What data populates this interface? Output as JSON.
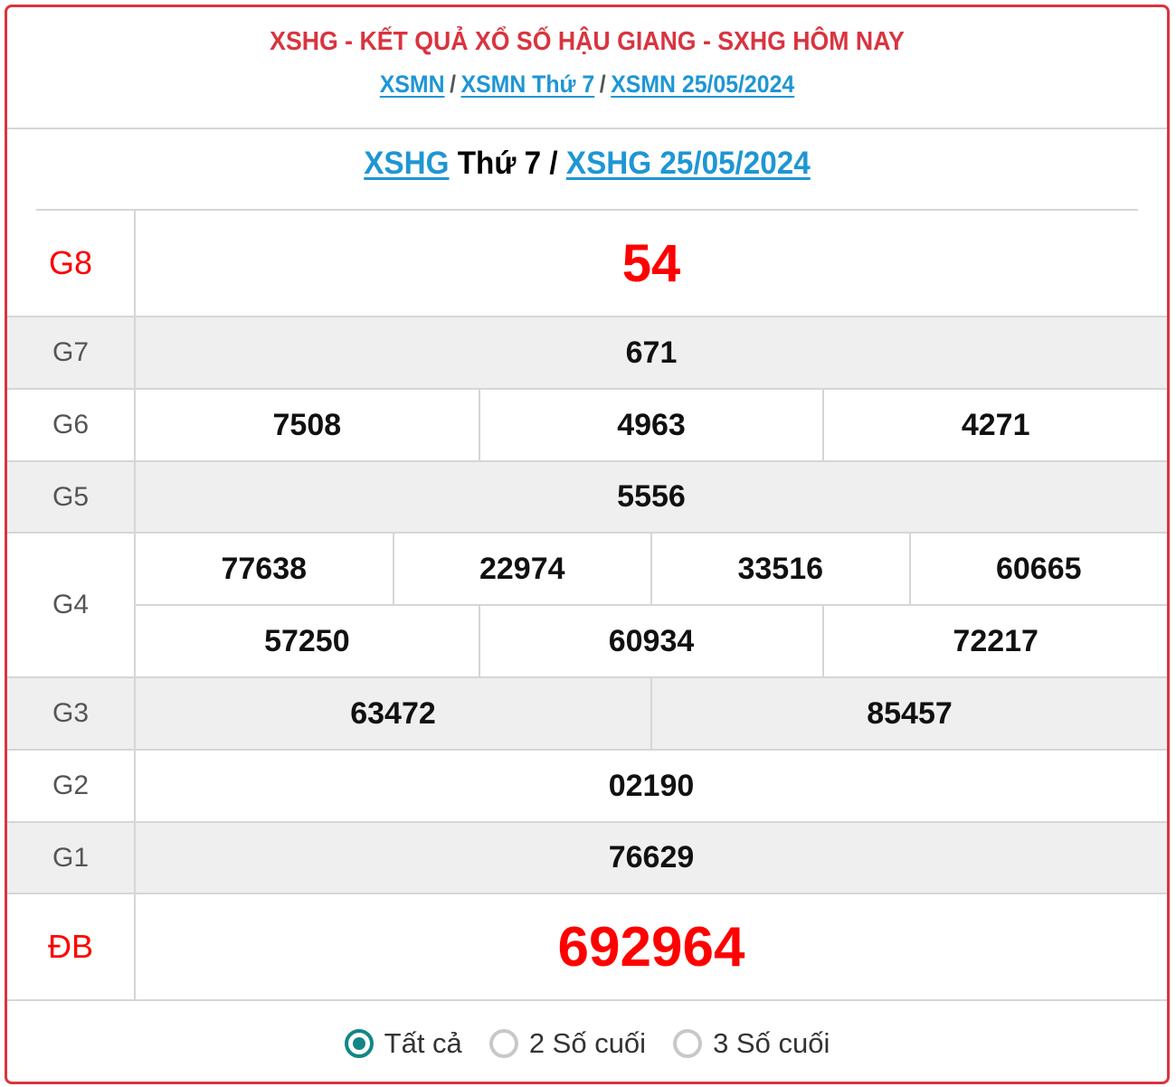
{
  "header": {
    "title": "XSHG - KẾT QUẢ XỔ SỐ HẬU GIANG - SXHG HÔM NAY",
    "crumbs": [
      "XSMN",
      "XSMN Thứ 7",
      "XSMN 25/05/2024"
    ],
    "sep": "/"
  },
  "subheader": {
    "link1": "XSHG",
    "day": "Thứ 7",
    "sep": "/",
    "link2": "XSHG 25/05/2024"
  },
  "prizes": {
    "g8": {
      "label": "G8",
      "values": [
        "54"
      ]
    },
    "g7": {
      "label": "G7",
      "values": [
        "671"
      ]
    },
    "g6": {
      "label": "G6",
      "values": [
        "7508",
        "4963",
        "4271"
      ]
    },
    "g5": {
      "label": "G5",
      "values": [
        "5556"
      ]
    },
    "g4": {
      "label": "G4",
      "values": [
        "77638",
        "22974",
        "33516",
        "60665",
        "57250",
        "60934",
        "72217"
      ]
    },
    "g3": {
      "label": "G3",
      "values": [
        "63472",
        "85457"
      ]
    },
    "g2": {
      "label": "G2",
      "values": [
        "02190"
      ]
    },
    "g1": {
      "label": "G1",
      "values": [
        "76629"
      ]
    },
    "db": {
      "label": "ĐB",
      "values": [
        "692964"
      ]
    }
  },
  "filter": {
    "options": [
      "Tất cả",
      "2 Số cuối",
      "3 Số cuối"
    ],
    "selected": "Tất cả"
  },
  "colors": {
    "accent": "#d9343f",
    "link": "#1e96d4",
    "radio": "#138686",
    "highlight": "#ff0000"
  }
}
